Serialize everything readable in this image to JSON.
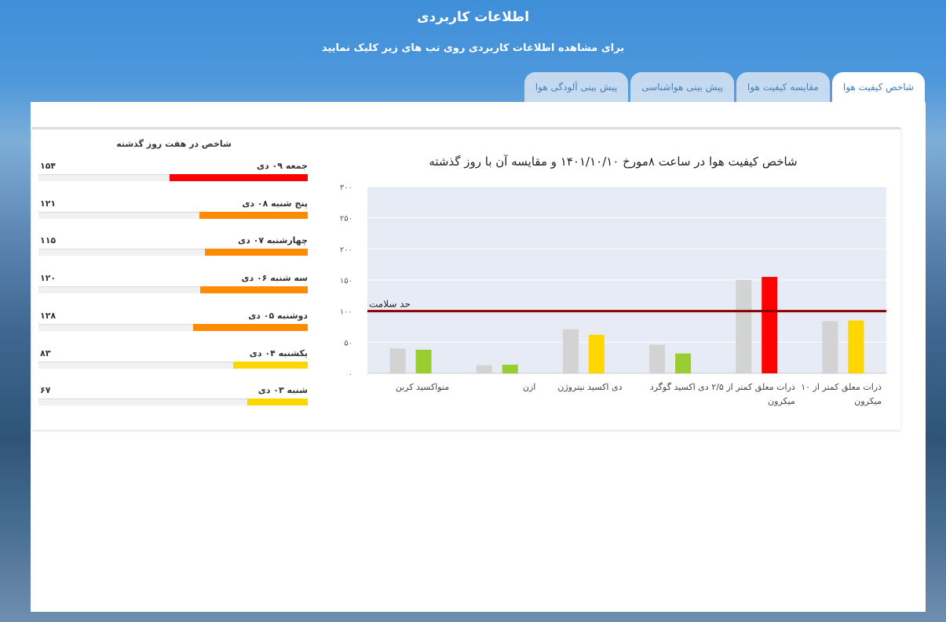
{
  "header": {
    "title": "اطلاعات کاربردی",
    "subtitle": "برای مشاهده اطلاعات کاربردی روی تب های زیر کلیک نمایید"
  },
  "tabs": [
    {
      "label": "شاخص کیفیت هوا",
      "active": true
    },
    {
      "label": "مقایسه کیفیت هوا",
      "active": false
    },
    {
      "label": "پیش بینی هواشناسی",
      "active": false
    },
    {
      "label": "پیش بینی آلودگی هوا",
      "active": false
    }
  ],
  "seven_days": {
    "title": "شاخص در هفت روز گذشته",
    "max": 300,
    "days": [
      {
        "label": "جمعه ۰۹ دی",
        "value": 154,
        "value_text": "۱۵۴",
        "color": "#ff0000"
      },
      {
        "label": "پنج شنبه ۰۸ دی",
        "value": 121,
        "value_text": "۱۲۱",
        "color": "#ff8c00"
      },
      {
        "label": "چهارشنبه ۰۷ دی",
        "value": 115,
        "value_text": "۱۱۵",
        "color": "#ff8c00"
      },
      {
        "label": "سه شنبه ۰۶ دی",
        "value": 120,
        "value_text": "۱۲۰",
        "color": "#ff8c00"
      },
      {
        "label": "دوشنبه ۰۵ دی",
        "value": 128,
        "value_text": "۱۲۸",
        "color": "#ff8c00"
      },
      {
        "label": "یکشنبه ۰۴ دی",
        "value": 83,
        "value_text": "۸۳",
        "color": "#ffd700"
      },
      {
        "label": "شنبه ۰۳ دی",
        "value": 67,
        "value_text": "۶۷",
        "color": "#ffd700"
      }
    ]
  },
  "chart_data": {
    "type": "bar",
    "title": "شاخص کیفیت هوا در ساعت ۸مورخ ۱۴۰۱/۱۰/۱۰ و مقایسه آن با روز گذشته",
    "ylim": [
      0,
      300
    ],
    "yticks": [
      0,
      50,
      100,
      150,
      200,
      250,
      300
    ],
    "ytick_labels": [
      "۰",
      "۵۰",
      "۱۰۰",
      "۱۵۰",
      "۲۰۰",
      "۲۵۰",
      "۳۰۰"
    ],
    "threshold": {
      "value": 100,
      "label": "حد سلامت",
      "color": "#8b0000"
    },
    "categories": [
      [
        "منواکسید کربن"
      ],
      [
        "ازن"
      ],
      [
        "دی اکسید نیتروژن"
      ],
      [
        "دی اکسید گوگرد"
      ],
      [
        "ذرات معلق کمتر از ۲/۵",
        "میکرون"
      ],
      [
        "ذرات معلق کمتر از ۱۰",
        "میکرون"
      ]
    ],
    "series": [
      {
        "values": [
          40,
          13,
          71,
          46,
          150,
          84
        ],
        "color": "#d3d3d3"
      },
      {
        "values": [
          38,
          14,
          62,
          32,
          155,
          85
        ],
        "colors": [
          "#9acd32",
          "#9acd32",
          "#ffd700",
          "#9acd32",
          "#ff0000",
          "#ffd700"
        ]
      }
    ],
    "grid": true,
    "plot_background": "#e6ebf5"
  }
}
